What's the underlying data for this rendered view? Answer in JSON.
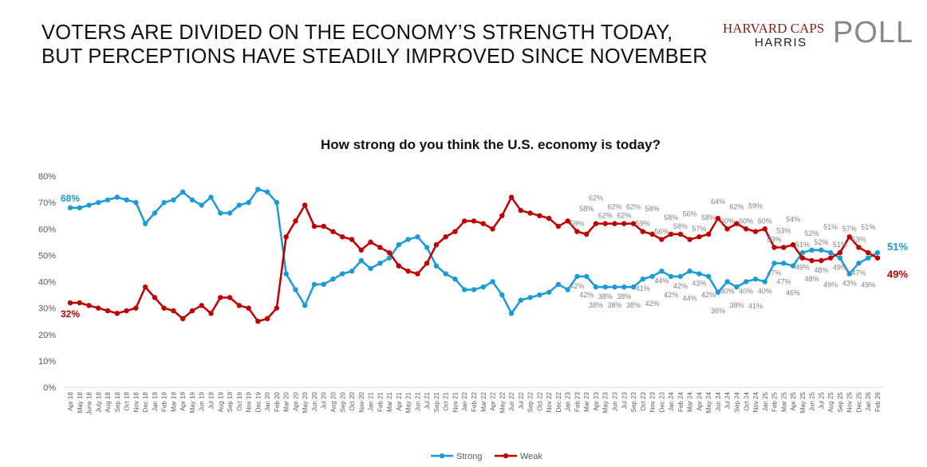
{
  "headline": [
    "VOTERS ARE DIVIDED ON THE ECONOMY’S STRENGTH TODAY,",
    "BUT PERCEPTIONS HAVE STEADILY IMPROVED SINCE NOVEMBER"
  ],
  "logo": {
    "line1": "HARVARD CAPS",
    "line2": "HARRIS",
    "line3": "POLL"
  },
  "chart_data": {
    "type": "line",
    "title": "How strong do you think the U.S. economy is today?",
    "xlabel": "",
    "ylabel": "",
    "ylim": [
      0,
      80
    ],
    "yticks": [
      "0%",
      "10%",
      "20%",
      "30%",
      "40%",
      "50%",
      "60%",
      "70%",
      "80%"
    ],
    "legend_position": "bottom",
    "categories": [
      "Apr 18",
      "May 18",
      "June 18",
      "July 18",
      "Aug 18",
      "Sep 18",
      "Oct 18",
      "Nov 18",
      "Dec 18",
      "Jan 19",
      "Feb 19",
      "Mar 19",
      "Apr 19",
      "May 19",
      "Jun 19",
      "Jul 19",
      "Aug 19",
      "Sep 19",
      "Oct 19",
      "Nov 19",
      "Dec 19",
      "Jan 20",
      "Feb 20",
      "Mar 20",
      "Apr 20",
      "May 20",
      "Jun 20",
      "Jul 20",
      "Aug 20",
      "Sep 20",
      "Oct 20",
      "Nov-20",
      "Jan 21",
      "Feb 21",
      "Mar 21",
      "Apr 21",
      "May 21",
      "Jun 21",
      "Jul 21",
      "Sep 21",
      "Oct 21",
      "Nov 21",
      "Jan 22",
      "Feb 22",
      "Mar 22",
      "Apr 22",
      "May 22",
      "Jun 22",
      "Jul 22",
      "Sep 22",
      "Oct 22",
      "Nov 22",
      "Dec 22",
      "Jan 23",
      "Feb 23",
      "Mar 23",
      "Apr 23",
      "May 23",
      "Jun 23",
      "Jul 23",
      "Sep 23",
      "Oct 23",
      "Nov 23",
      "Dec 23",
      "Jan 24",
      "Feb 24",
      "Mar 24",
      "Apr 24",
      "May 24",
      "Jun 24",
      "Jul 24",
      "Sep 24",
      "Oct 24",
      "Nov 24",
      "Jan 25",
      "Feb 25",
      "Mar 25",
      "Apr 25",
      "May 25",
      "Jun 25",
      "Jul 25",
      "Aug 25",
      "Sep 25",
      "Nov 25",
      "Dec 25",
      "Jan 26",
      "Feb 26"
    ],
    "series": [
      {
        "name": "Strong",
        "color": "#1a9bd7",
        "values": [
          68,
          68,
          69,
          70,
          71,
          72,
          71,
          70,
          62,
          66,
          70,
          71,
          74,
          71,
          69,
          72,
          66,
          66,
          69,
          70,
          75,
          74,
          70,
          43,
          37,
          31,
          39,
          39,
          41,
          43,
          44,
          48,
          45,
          47,
          49,
          54,
          56,
          57,
          53,
          46,
          43,
          41,
          37,
          37,
          38,
          40,
          35,
          28,
          33,
          34,
          35,
          36,
          39,
          37,
          42,
          42,
          38,
          38,
          38,
          38,
          38,
          41,
          42,
          44,
          42,
          42,
          44,
          43,
          42,
          36,
          40,
          38,
          40,
          41,
          40,
          47,
          47,
          46,
          51,
          52,
          52,
          51,
          49,
          43,
          47,
          49,
          51
        ]
      },
      {
        "name": "Weak",
        "color": "#c00000",
        "values": [
          32,
          32,
          31,
          30,
          29,
          28,
          29,
          30,
          38,
          34,
          30,
          29,
          26,
          29,
          31,
          28,
          34,
          34,
          31,
          30,
          25,
          26,
          30,
          57,
          63,
          69,
          61,
          61,
          59,
          57,
          56,
          52,
          55,
          53,
          51,
          46,
          44,
          43,
          47,
          54,
          57,
          59,
          63,
          63,
          62,
          60,
          65,
          72,
          67,
          66,
          65,
          64,
          61,
          63,
          59,
          58,
          62,
          62,
          62,
          62,
          62,
          59,
          58,
          56,
          58,
          58,
          56,
          57,
          58,
          64,
          60,
          62,
          60,
          59,
          60,
          53,
          53,
          54,
          49,
          48,
          48,
          49,
          51,
          57,
          53,
          51,
          49
        ]
      }
    ],
    "labeled_from_index": 54,
    "first_labels": {
      "Strong": "68%",
      "Weak": "32%"
    },
    "last_labels": {
      "Strong": "51%",
      "Weak": "49%"
    }
  }
}
